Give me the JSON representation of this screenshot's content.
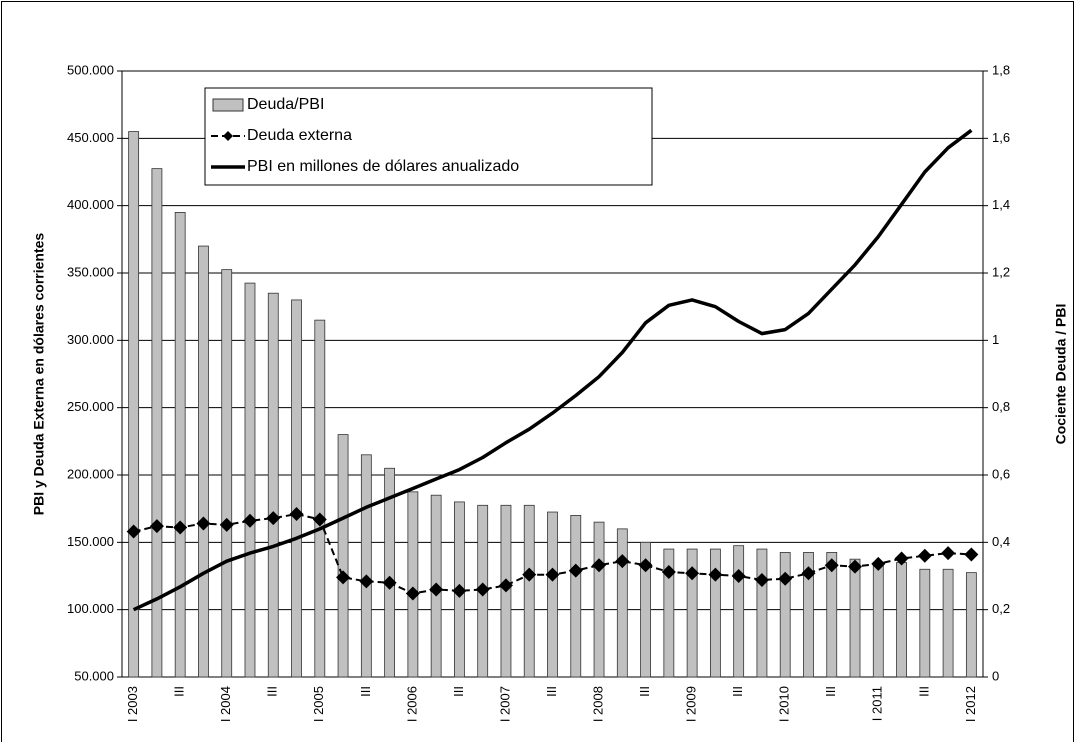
{
  "chart_data": {
    "type": "bar-line",
    "y_axis_label": "PBI y Deuda Externa en dólares corrientes",
    "y2_axis_label": "Cociente Deuda / PBI",
    "categories": [
      "I 2003",
      null,
      "III",
      null,
      "I 2004",
      null,
      "III",
      null,
      "I 2005",
      null,
      "III",
      null,
      "I 2006",
      null,
      "III",
      null,
      "I 2007",
      null,
      "III",
      null,
      "I 2008",
      null,
      "III",
      null,
      "I 2009",
      null,
      "III",
      null,
      "I 2010",
      null,
      "III",
      null,
      "I 2011",
      null,
      "III",
      null,
      "I 2012"
    ],
    "ylim": [
      50000,
      500000
    ],
    "yticks": [
      {
        "value": 50000,
        "label": "50.000"
      },
      {
        "value": 100000,
        "label": "100.000"
      },
      {
        "value": 150000,
        "label": "150.000"
      },
      {
        "value": 200000,
        "label": "200.000"
      },
      {
        "value": 250000,
        "label": "250.000"
      },
      {
        "value": 300000,
        "label": "300.000"
      },
      {
        "value": 350000,
        "label": "350.000"
      },
      {
        "value": 400000,
        "label": "400.000"
      },
      {
        "value": 450000,
        "label": "450.000"
      },
      {
        "value": 500000,
        "label": "500.000"
      }
    ],
    "y2lim": [
      0,
      1.8
    ],
    "y2ticks": [
      0,
      {
        "value": 0.2,
        "label": "0,2"
      },
      {
        "value": 0.4,
        "label": "0,4"
      },
      {
        "value": 0.6,
        "label": "0,6"
      },
      {
        "value": 0.8,
        "label": "0,8"
      },
      1,
      {
        "value": 1.2,
        "label": "1,2"
      },
      {
        "value": 1.4,
        "label": "1,4"
      },
      {
        "value": 1.6,
        "label": "1,6"
      },
      {
        "value": 1.8,
        "label": "1,8"
      }
    ],
    "grid": true,
    "legend": "top-left",
    "series": [
      {
        "name": "Deuda/PBI",
        "type": "bar",
        "axis": "y2",
        "color": "#c0c0c0",
        "values": [
          1.62,
          1.51,
          1.38,
          1.28,
          1.21,
          1.17,
          1.14,
          1.12,
          1.06,
          0.72,
          0.66,
          0.62,
          0.55,
          0.54,
          0.52,
          0.51,
          0.51,
          0.51,
          0.49,
          0.48,
          0.46,
          0.44,
          0.4,
          0.38,
          0.38,
          0.38,
          0.39,
          0.38,
          0.37,
          0.37,
          0.37,
          0.35,
          0.34,
          0.34,
          0.32,
          0.32,
          0.31
        ]
      },
      {
        "name": "Deuda externa",
        "type": "line-marker",
        "color": "#000000",
        "values": [
          158000,
          162000,
          161000,
          164000,
          163000,
          166000,
          168000,
          171000,
          167000,
          124000,
          121000,
          120000,
          112000,
          115000,
          114000,
          115000,
          118000,
          126000,
          126000,
          129000,
          133000,
          136000,
          133000,
          128000,
          127000,
          126000,
          125000,
          122000,
          123000,
          127000,
          133000,
          132000,
          134000,
          138000,
          140000,
          142000,
          141000
        ]
      },
      {
        "name": "PBI en millones de dólares anualizado",
        "type": "line",
        "color": "#000000",
        "values": [
          100000,
          108000,
          117000,
          127000,
          136000,
          142000,
          147000,
          153000,
          160000,
          168000,
          176000,
          183000,
          190000,
          197000,
          204000,
          213000,
          224000,
          234000,
          246000,
          259000,
          273000,
          291000,
          313000,
          326000,
          330000,
          325000,
          314000,
          305000,
          308000,
          320000,
          338000,
          356000,
          377000,
          401000,
          425000,
          443000,
          456000
        ]
      }
    ]
  }
}
